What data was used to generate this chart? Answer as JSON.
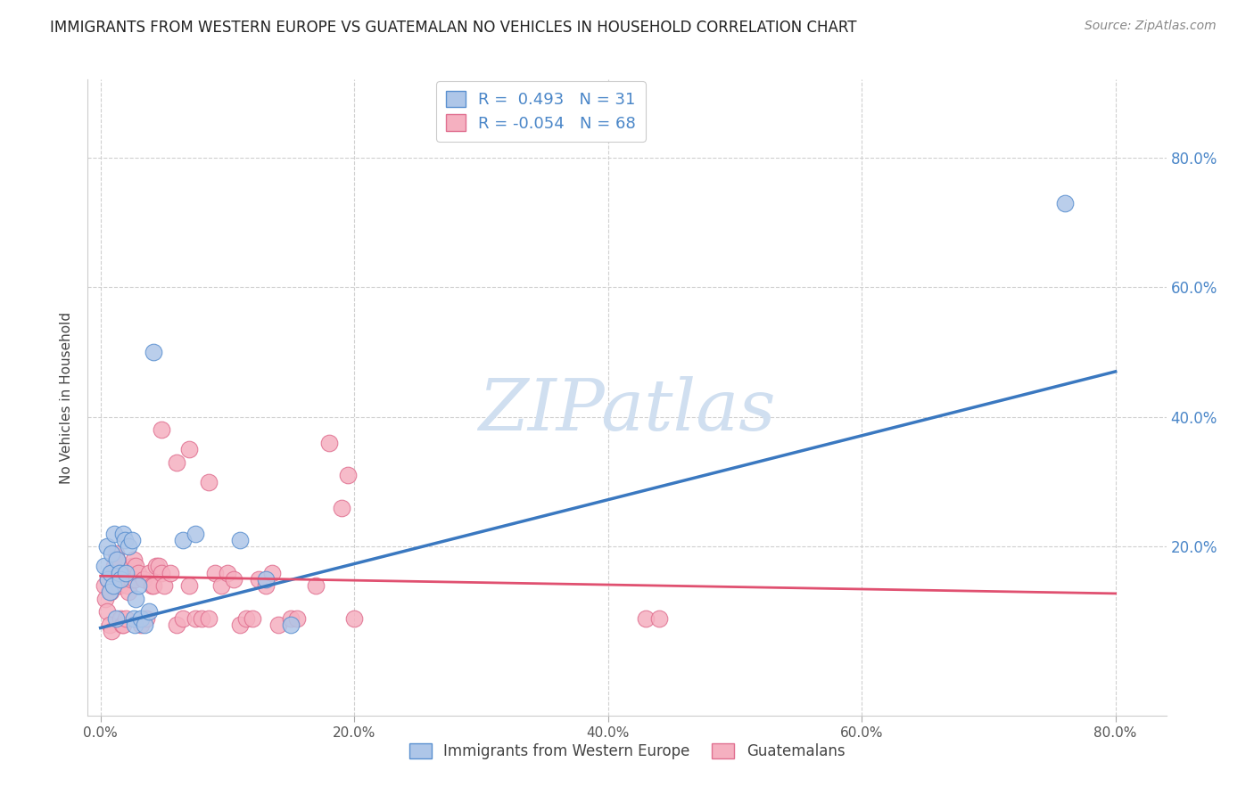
{
  "title": "IMMIGRANTS FROM WESTERN EUROPE VS GUATEMALAN NO VEHICLES IN HOUSEHOLD CORRELATION CHART",
  "source": "Source: ZipAtlas.com",
  "ylabel": "No Vehicles in Household",
  "x_tick_labels": [
    "0.0%",
    "20.0%",
    "40.0%",
    "60.0%",
    "80.0%"
  ],
  "x_tick_positions": [
    0.0,
    0.2,
    0.4,
    0.6,
    0.8
  ],
  "y_tick_labels": [
    "20.0%",
    "40.0%",
    "60.0%",
    "80.0%"
  ],
  "y_tick_positions": [
    0.2,
    0.4,
    0.6,
    0.8
  ],
  "xlim": [
    -0.01,
    0.84
  ],
  "ylim": [
    -0.06,
    0.92
  ],
  "legend_label1": "Immigrants from Western Europe",
  "legend_label2": "Guatemalans",
  "blue_scatter": [
    [
      0.003,
      0.17
    ],
    [
      0.005,
      0.2
    ],
    [
      0.006,
      0.15
    ],
    [
      0.007,
      0.13
    ],
    [
      0.008,
      0.16
    ],
    [
      0.009,
      0.19
    ],
    [
      0.01,
      0.14
    ],
    [
      0.011,
      0.22
    ],
    [
      0.012,
      0.09
    ],
    [
      0.013,
      0.18
    ],
    [
      0.015,
      0.16
    ],
    [
      0.016,
      0.15
    ],
    [
      0.018,
      0.22
    ],
    [
      0.019,
      0.21
    ],
    [
      0.02,
      0.16
    ],
    [
      0.022,
      0.2
    ],
    [
      0.025,
      0.21
    ],
    [
      0.026,
      0.09
    ],
    [
      0.027,
      0.08
    ],
    [
      0.028,
      0.12
    ],
    [
      0.03,
      0.14
    ],
    [
      0.032,
      0.09
    ],
    [
      0.035,
      0.08
    ],
    [
      0.038,
      0.1
    ],
    [
      0.042,
      0.5
    ],
    [
      0.065,
      0.21
    ],
    [
      0.075,
      0.22
    ],
    [
      0.11,
      0.21
    ],
    [
      0.13,
      0.15
    ],
    [
      0.15,
      0.08
    ],
    [
      0.76,
      0.73
    ]
  ],
  "pink_scatter": [
    [
      0.003,
      0.14
    ],
    [
      0.004,
      0.12
    ],
    [
      0.005,
      0.1
    ],
    [
      0.006,
      0.15
    ],
    [
      0.007,
      0.08
    ],
    [
      0.008,
      0.13
    ],
    [
      0.009,
      0.07
    ],
    [
      0.01,
      0.16
    ],
    [
      0.011,
      0.17
    ],
    [
      0.012,
      0.19
    ],
    [
      0.013,
      0.18
    ],
    [
      0.014,
      0.16
    ],
    [
      0.015,
      0.14
    ],
    [
      0.016,
      0.09
    ],
    [
      0.017,
      0.08
    ],
    [
      0.018,
      0.08
    ],
    [
      0.019,
      0.15
    ],
    [
      0.02,
      0.09
    ],
    [
      0.021,
      0.14
    ],
    [
      0.022,
      0.13
    ],
    [
      0.023,
      0.16
    ],
    [
      0.024,
      0.15
    ],
    [
      0.025,
      0.17
    ],
    [
      0.026,
      0.18
    ],
    [
      0.027,
      0.15
    ],
    [
      0.028,
      0.17
    ],
    [
      0.03,
      0.16
    ],
    [
      0.032,
      0.08
    ],
    [
      0.034,
      0.15
    ],
    [
      0.036,
      0.09
    ],
    [
      0.038,
      0.16
    ],
    [
      0.04,
      0.14
    ],
    [
      0.042,
      0.14
    ],
    [
      0.044,
      0.17
    ],
    [
      0.046,
      0.17
    ],
    [
      0.048,
      0.16
    ],
    [
      0.05,
      0.14
    ],
    [
      0.055,
      0.16
    ],
    [
      0.06,
      0.08
    ],
    [
      0.065,
      0.09
    ],
    [
      0.07,
      0.14
    ],
    [
      0.075,
      0.09
    ],
    [
      0.08,
      0.09
    ],
    [
      0.085,
      0.09
    ],
    [
      0.09,
      0.16
    ],
    [
      0.095,
      0.14
    ],
    [
      0.1,
      0.16
    ],
    [
      0.105,
      0.15
    ],
    [
      0.11,
      0.08
    ],
    [
      0.115,
      0.09
    ],
    [
      0.12,
      0.09
    ],
    [
      0.125,
      0.15
    ],
    [
      0.13,
      0.14
    ],
    [
      0.135,
      0.16
    ],
    [
      0.14,
      0.08
    ],
    [
      0.15,
      0.09
    ],
    [
      0.155,
      0.09
    ],
    [
      0.17,
      0.14
    ],
    [
      0.18,
      0.36
    ],
    [
      0.19,
      0.26
    ],
    [
      0.195,
      0.31
    ],
    [
      0.2,
      0.09
    ],
    [
      0.43,
      0.09
    ],
    [
      0.44,
      0.09
    ],
    [
      0.048,
      0.38
    ],
    [
      0.06,
      0.33
    ],
    [
      0.07,
      0.35
    ],
    [
      0.085,
      0.3
    ]
  ],
  "blue_line_x": [
    0.0,
    0.8
  ],
  "blue_line_y": [
    0.075,
    0.47
  ],
  "pink_line_x": [
    0.0,
    0.8
  ],
  "pink_line_y": [
    0.155,
    0.128
  ],
  "blue_line_color": "#3a78c0",
  "pink_line_color": "#e05070",
  "blue_scatter_face": "#aec6e8",
  "blue_scatter_edge": "#5a90d0",
  "pink_scatter_face": "#f5b0c0",
  "pink_scatter_edge": "#e07090",
  "watermark_text": "ZIPatlas",
  "watermark_color": "#d0dff0",
  "grid_color": "#d0d0d0",
  "background_color": "#ffffff",
  "title_color": "#222222",
  "source_color": "#888888",
  "ylabel_color": "#444444",
  "right_tick_color": "#4a86c8"
}
